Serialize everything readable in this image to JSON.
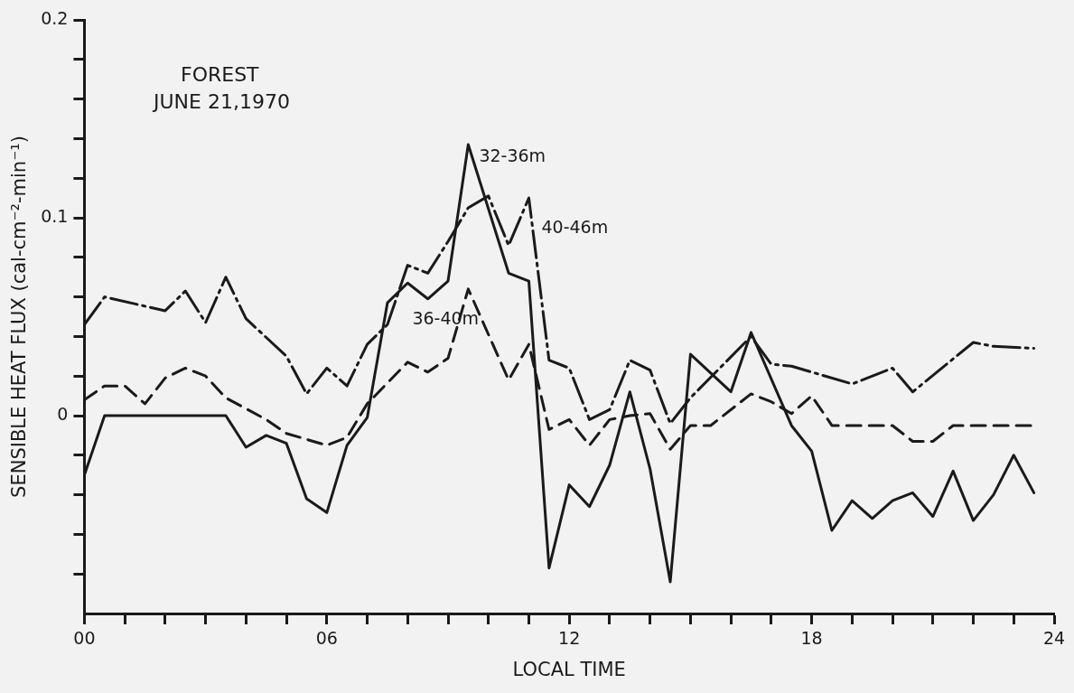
{
  "chart_data": {
    "type": "line",
    "title": "FOREST",
    "subtitle": "JUNE 21,1970",
    "xlabel": "LOCAL TIME",
    "ylabel": "SENSIBLE HEAT FLUX (cal-cm⁻²-min⁻¹)",
    "xlim": [
      0,
      24
    ],
    "xticks": [
      {
        "value": 0,
        "label": "00"
      },
      {
        "value": 1,
        "label": null
      },
      {
        "value": 2,
        "label": null
      },
      {
        "value": 3,
        "label": null
      },
      {
        "value": 4,
        "label": null
      },
      {
        "value": 5,
        "label": null
      },
      {
        "value": 6,
        "label": "06"
      },
      {
        "value": 7,
        "label": null
      },
      {
        "value": 8,
        "label": null
      },
      {
        "value": 9,
        "label": null
      },
      {
        "value": 10,
        "label": null
      },
      {
        "value": 11,
        "label": null
      },
      12,
      {
        "value": 13,
        "label": null
      },
      {
        "value": 14,
        "label": null
      },
      {
        "value": 15,
        "label": null
      },
      {
        "value": 16,
        "label": null
      },
      {
        "value": 17,
        "label": null
      },
      18,
      {
        "value": 19,
        "label": null
      },
      {
        "value": 20,
        "label": null
      },
      {
        "value": 21,
        "label": null
      },
      {
        "value": 22,
        "label": null
      },
      {
        "value": 23,
        "label": null
      },
      24
    ],
    "ylim": [
      -0.1,
      0.2
    ],
    "yticks": [
      {
        "value": -0.08,
        "label": null
      },
      {
        "value": -0.06,
        "label": null
      },
      {
        "value": -0.04,
        "label": null
      },
      {
        "value": -0.02,
        "label": null
      },
      0,
      {
        "value": 0.02,
        "label": null
      },
      {
        "value": 0.04,
        "label": null
      },
      {
        "value": 0.06,
        "label": null
      },
      {
        "value": 0.08,
        "label": null
      },
      0.1,
      {
        "value": 0.12,
        "label": null
      },
      {
        "value": 0.14,
        "label": null
      },
      {
        "value": 0.16,
        "label": null
      },
      {
        "value": 0.18,
        "label": null
      },
      0.2
    ],
    "grid": false,
    "legend": false,
    "marker": "none",
    "series": [
      {
        "name": "32-36m",
        "color": "#1a1a1a",
        "line_style": "solid",
        "x": [
          0,
          0.5,
          3.5,
          4,
          4.5,
          5,
          5.5,
          6,
          6.5,
          7,
          7.5,
          8,
          8.5,
          9,
          9.5,
          10.5,
          11,
          11.5,
          12,
          12.5,
          13,
          13.5,
          14,
          14.5,
          15,
          16,
          16.5,
          17.5,
          18,
          18.5,
          19,
          19.5,
          20,
          20.5,
          21,
          21.5,
          22,
          22.5,
          23,
          23.5
        ],
        "values": [
          -0.03,
          0,
          0,
          -0.016,
          -0.01,
          -0.014,
          -0.042,
          -0.049,
          -0.015,
          -0.001,
          0.057,
          0.067,
          0.059,
          0.068,
          0.137,
          0.072,
          0.068,
          -0.077,
          -0.035,
          -0.046,
          -0.025,
          0.012,
          -0.027,
          -0.084,
          0.031,
          0.012,
          0.042,
          -0.005,
          -0.018,
          -0.058,
          -0.043,
          -0.052,
          -0.043,
          -0.039,
          -0.051,
          -0.028,
          -0.053,
          -0.04,
          -0.02,
          -0.039
        ]
      },
      {
        "name": "36-40m",
        "color": "#1a1a1a",
        "line_style": "dashed",
        "x": [
          0,
          0.5,
          1,
          1.5,
          2,
          2.5,
          3,
          3.5,
          4.5,
          5,
          5.5,
          6,
          6.5,
          7,
          8,
          8.5,
          9,
          9.5,
          10.5,
          11,
          11.5,
          12,
          12.5,
          13,
          13.5,
          14,
          14.5,
          15,
          15.5,
          16.5,
          17,
          17.5,
          18,
          18.5,
          20,
          20.5,
          21,
          21.5,
          23.5
        ],
        "values": [
          0.008,
          0.015,
          0.015,
          0.006,
          0.019,
          0.024,
          0.02,
          0.009,
          -0.002,
          -0.009,
          -0.012,
          -0.015,
          -0.011,
          0.006,
          0.027,
          0.022,
          0.029,
          0.064,
          0.018,
          0.036,
          -0.007,
          -0.002,
          -0.015,
          -0.002,
          0,
          0.001,
          -0.017,
          -0.005,
          -0.005,
          0.011,
          0.007,
          0.001,
          0.01,
          -0.005,
          -0.005,
          -0.013,
          -0.013,
          -0.005,
          -0.005
        ]
      },
      {
        "name": "40-46m",
        "color": "#1a1a1a",
        "line_style": "dashdot",
        "x": [
          0,
          0.5,
          2,
          2.5,
          3,
          3.5,
          4,
          5,
          5.5,
          6,
          6.5,
          7,
          7.5,
          8,
          8.5,
          9,
          9.5,
          10,
          10.5,
          11,
          11.5,
          12,
          12.5,
          13,
          13.5,
          14,
          14.5,
          15,
          16.5,
          17,
          17.5,
          19,
          20,
          20.5,
          22,
          22.5,
          23.5
        ],
        "values": [
          0.046,
          0.06,
          0.053,
          0.063,
          0.047,
          0.07,
          0.049,
          0.03,
          0.011,
          0.024,
          0.015,
          0.036,
          0.046,
          0.076,
          0.072,
          0.088,
          0.105,
          0.111,
          0.086,
          0.11,
          0.028,
          0.024,
          -0.002,
          0.003,
          0.028,
          0.023,
          -0.004,
          0.009,
          0.04,
          0.026,
          0.025,
          0.016,
          0.024,
          0.012,
          0.037,
          0.035,
          0.034
        ]
      }
    ]
  }
}
